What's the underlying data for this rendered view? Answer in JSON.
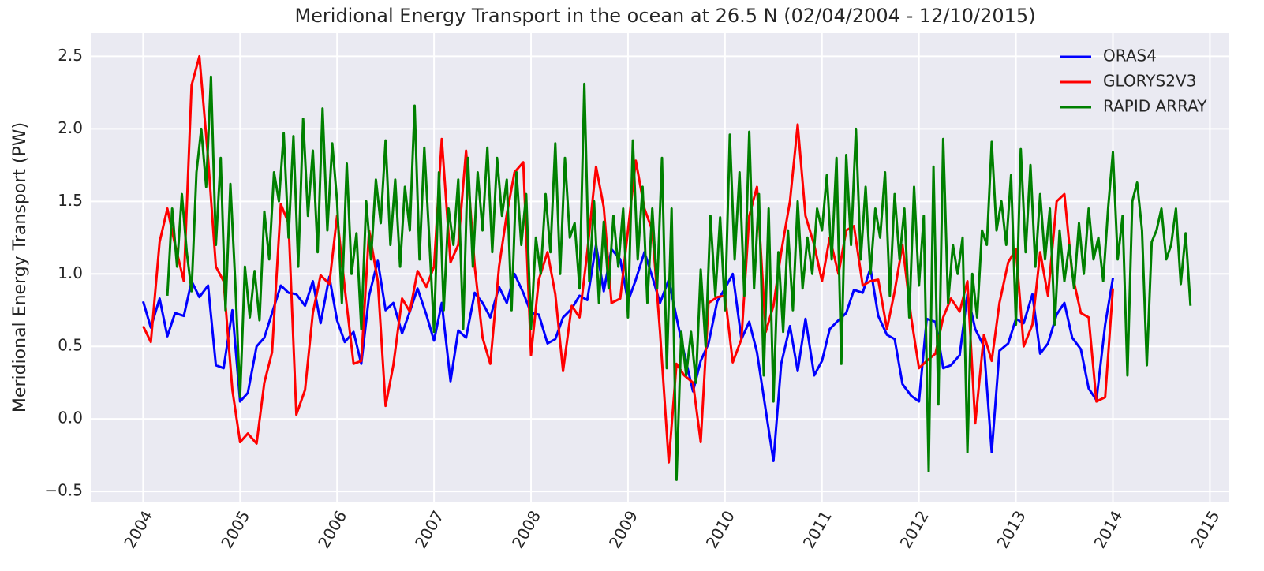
{
  "chart_data": {
    "type": "line",
    "title": "Meridional Energy Transport in the ocean at 26.5 N (02/04/2004 - 12/10/2015)",
    "ylabel": "Meridional Energy Transport (PW)",
    "x": [
      2004.0,
      2004.08,
      2004.17,
      2004.25,
      2004.33,
      2004.42,
      2004.5,
      2004.58,
      2004.67,
      2004.75,
      2004.83,
      2004.92,
      2005.0,
      2005.08,
      2005.17,
      2005.25,
      2005.33,
      2005.42,
      2005.5,
      2005.58,
      2005.67,
      2005.75,
      2005.83,
      2005.92,
      2006.0,
      2006.08,
      2006.17,
      2006.25,
      2006.33,
      2006.42,
      2006.5,
      2006.58,
      2006.67,
      2006.75,
      2006.83,
      2006.92,
      2007.0,
      2007.08,
      2007.17,
      2007.25,
      2007.33,
      2007.42,
      2007.5,
      2007.58,
      2007.67,
      2007.75,
      2007.83,
      2007.92,
      2008.0,
      2008.08,
      2008.17,
      2008.25,
      2008.33,
      2008.42,
      2008.5,
      2008.58,
      2008.67,
      2008.75,
      2008.83,
      2008.92,
      2009.0,
      2009.08,
      2009.17,
      2009.25,
      2009.33,
      2009.42,
      2009.5,
      2009.58,
      2009.67,
      2009.75,
      2009.83,
      2009.92,
      2010.0,
      2010.08,
      2010.17,
      2010.25,
      2010.33,
      2010.42,
      2010.5,
      2010.58,
      2010.67,
      2010.75,
      2010.83,
      2010.92,
      2011.0,
      2011.08,
      2011.17,
      2011.25,
      2011.33,
      2011.42,
      2011.5,
      2011.58,
      2011.67,
      2011.75,
      2011.83,
      2011.92,
      2012.0,
      2012.08,
      2012.17,
      2012.25,
      2012.33,
      2012.42,
      2012.5,
      2012.58,
      2012.67,
      2012.75,
      2012.83,
      2012.92,
      2013.0,
      2013.08,
      2013.17,
      2013.25,
      2013.33,
      2013.42,
      2013.5,
      2013.58,
      2013.67,
      2013.75,
      2013.83,
      2013.92,
      2014.0
    ],
    "series": [
      {
        "name": "ORAS4",
        "color": "#0000ff",
        "values": [
          0.81,
          0.63,
          0.83,
          0.57,
          0.73,
          0.71,
          0.95,
          0.84,
          0.92,
          0.37,
          0.35,
          0.75,
          0.12,
          0.18,
          0.5,
          0.56,
          0.73,
          0.92,
          0.87,
          0.86,
          0.78,
          0.95,
          0.66,
          0.98,
          0.68,
          0.53,
          0.6,
          0.38,
          0.85,
          1.09,
          0.75,
          0.8,
          0.59,
          0.74,
          0.9,
          0.72,
          0.54,
          0.8,
          0.26,
          0.61,
          0.56,
          0.87,
          0.8,
          0.7,
          0.91,
          0.8,
          1.0,
          0.87,
          0.73,
          0.72,
          0.52,
          0.55,
          0.7,
          0.76,
          0.85,
          0.82,
          1.2,
          0.88,
          1.17,
          1.1,
          0.81,
          0.96,
          1.15,
          0.98,
          0.8,
          0.96,
          0.7,
          0.45,
          0.19,
          0.4,
          0.52,
          0.81,
          0.9,
          1.0,
          0.55,
          0.67,
          0.46,
          0.06,
          -0.29,
          0.38,
          0.64,
          0.33,
          0.69,
          0.3,
          0.4,
          0.62,
          0.68,
          0.73,
          0.89,
          0.87,
          1.04,
          0.71,
          0.58,
          0.55,
          0.24,
          0.16,
          0.12,
          0.69,
          0.67,
          0.35,
          0.37,
          0.44,
          0.86,
          0.62,
          0.5,
          -0.23,
          0.47,
          0.52,
          0.69,
          0.66,
          0.86,
          0.45,
          0.52,
          0.72,
          0.8,
          0.56,
          0.48,
          0.21,
          0.13,
          0.65,
          0.97
        ]
      },
      {
        "name": "GLORYS2V3",
        "color": "#ff0000",
        "values": [
          0.64,
          0.53,
          1.22,
          1.45,
          1.2,
          0.95,
          2.3,
          2.5,
          1.8,
          1.05,
          0.95,
          0.2,
          -0.16,
          -0.1,
          -0.17,
          0.25,
          0.46,
          1.48,
          1.35,
          0.03,
          0.2,
          0.73,
          0.99,
          0.93,
          1.4,
          0.9,
          0.38,
          0.4,
          1.3,
          0.95,
          0.09,
          0.37,
          0.83,
          0.74,
          1.02,
          0.91,
          1.05,
          1.93,
          1.08,
          1.2,
          1.85,
          1.05,
          0.56,
          0.38,
          1.05,
          1.41,
          1.7,
          1.77,
          0.44,
          0.96,
          1.15,
          0.86,
          0.33,
          0.78,
          0.7,
          1.15,
          1.74,
          1.46,
          0.8,
          0.83,
          1.3,
          1.78,
          1.45,
          1.3,
          0.6,
          -0.3,
          0.38,
          0.3,
          0.25,
          -0.16,
          0.8,
          0.84,
          0.85,
          0.39,
          0.55,
          1.4,
          1.6,
          0.6,
          0.78,
          1.15,
          1.5,
          2.03,
          1.4,
          1.2,
          0.95,
          1.25,
          1.0,
          1.3,
          1.33,
          0.92,
          0.95,
          0.96,
          0.62,
          0.88,
          1.2,
          0.7,
          0.35,
          0.4,
          0.45,
          0.7,
          0.83,
          0.74,
          0.95,
          -0.03,
          0.58,
          0.4,
          0.8,
          1.08,
          1.17,
          0.5,
          0.65,
          1.15,
          0.85,
          1.5,
          1.55,
          1.0,
          0.73,
          0.7,
          0.12,
          0.15,
          0.9
        ]
      },
      {
        "name": "RAPID ARRAY",
        "color": "#008000",
        "x": [
          2004.25,
          2004.3,
          2004.35,
          2004.4,
          2004.45,
          2004.5,
          2004.55,
          2004.6,
          2004.65,
          2004.7,
          2004.75,
          2004.8,
          2004.85,
          2004.9,
          2004.95,
          2005.0,
          2005.05,
          2005.1,
          2005.15,
          2005.2,
          2005.25,
          2005.3,
          2005.35,
          2005.4,
          2005.45,
          2005.5,
          2005.55,
          2005.6,
          2005.65,
          2005.7,
          2005.75,
          2005.8,
          2005.85,
          2005.9,
          2005.95,
          2006.0,
          2006.05,
          2006.1,
          2006.15,
          2006.2,
          2006.25,
          2006.3,
          2006.35,
          2006.4,
          2006.45,
          2006.5,
          2006.55,
          2006.6,
          2006.65,
          2006.7,
          2006.75,
          2006.8,
          2006.85,
          2006.9,
          2006.95,
          2007.0,
          2007.05,
          2007.1,
          2007.15,
          2007.2,
          2007.25,
          2007.3,
          2007.35,
          2007.4,
          2007.45,
          2007.5,
          2007.55,
          2007.6,
          2007.65,
          2007.7,
          2007.75,
          2007.8,
          2007.85,
          2007.9,
          2007.95,
          2008.0,
          2008.05,
          2008.1,
          2008.15,
          2008.2,
          2008.25,
          2008.3,
          2008.35,
          2008.4,
          2008.45,
          2008.5,
          2008.55,
          2008.6,
          2008.65,
          2008.7,
          2008.75,
          2008.8,
          2008.85,
          2008.9,
          2008.95,
          2009.0,
          2009.05,
          2009.1,
          2009.15,
          2009.2,
          2009.25,
          2009.3,
          2009.35,
          2009.4,
          2009.45,
          2009.5,
          2009.55,
          2009.6,
          2009.65,
          2009.7,
          2009.75,
          2009.8,
          2009.85,
          2009.9,
          2009.95,
          2010.0,
          2010.05,
          2010.1,
          2010.15,
          2010.2,
          2010.25,
          2010.3,
          2010.35,
          2010.4,
          2010.45,
          2010.5,
          2010.55,
          2010.6,
          2010.65,
          2010.7,
          2010.75,
          2010.8,
          2010.85,
          2010.9,
          2010.95,
          2011.0,
          2011.05,
          2011.1,
          2011.15,
          2011.2,
          2011.25,
          2011.3,
          2011.35,
          2011.4,
          2011.45,
          2011.5,
          2011.55,
          2011.6,
          2011.65,
          2011.7,
          2011.75,
          2011.8,
          2011.85,
          2011.9,
          2011.95,
          2012.0,
          2012.05,
          2012.1,
          2012.15,
          2012.2,
          2012.25,
          2012.3,
          2012.35,
          2012.4,
          2012.45,
          2012.5,
          2012.55,
          2012.6,
          2012.65,
          2012.7,
          2012.75,
          2012.8,
          2012.85,
          2012.9,
          2012.95,
          2013.0,
          2013.05,
          2013.1,
          2013.15,
          2013.2,
          2013.25,
          2013.3,
          2013.35,
          2013.4,
          2013.45,
          2013.5,
          2013.55,
          2013.6,
          2013.65,
          2013.7,
          2013.75,
          2013.8,
          2013.85,
          2013.9,
          2013.95,
          2014.0,
          2014.05,
          2014.1,
          2014.15,
          2014.2,
          2014.25,
          2014.3,
          2014.35,
          2014.4,
          2014.45,
          2014.5,
          2014.55,
          2014.6,
          2014.65,
          2014.7,
          2014.75,
          2014.8
        ],
        "values": [
          0.85,
          1.45,
          1.05,
          1.55,
          1.15,
          0.88,
          1.7,
          2.0,
          1.6,
          2.36,
          1.2,
          1.8,
          0.75,
          1.62,
          0.95,
          0.15,
          1.05,
          0.7,
          1.02,
          0.68,
          1.43,
          1.1,
          1.7,
          1.5,
          1.97,
          1.25,
          1.95,
          1.05,
          2.07,
          1.4,
          1.85,
          1.15,
          2.14,
          1.3,
          1.9,
          1.5,
          0.8,
          1.76,
          1.0,
          1.28,
          0.62,
          1.5,
          1.1,
          1.65,
          1.35,
          1.92,
          1.2,
          1.65,
          1.05,
          1.6,
          1.3,
          2.16,
          1.1,
          1.87,
          1.25,
          0.6,
          1.7,
          0.75,
          1.45,
          1.2,
          1.65,
          0.62,
          1.8,
          1.05,
          1.7,
          1.3,
          1.87,
          1.15,
          1.8,
          1.4,
          1.65,
          0.75,
          1.7,
          1.2,
          1.55,
          0.62,
          1.25,
          1.0,
          1.55,
          1.15,
          1.9,
          1.0,
          1.8,
          1.25,
          1.35,
          0.9,
          2.31,
          0.95,
          1.5,
          0.8,
          1.36,
          0.9,
          1.4,
          1.05,
          1.45,
          0.7,
          1.92,
          1.1,
          1.6,
          0.8,
          1.45,
          0.9,
          1.8,
          0.35,
          1.45,
          -0.42,
          0.6,
          0.3,
          0.6,
          0.25,
          1.03,
          0.5,
          1.4,
          0.85,
          1.39,
          0.75,
          1.96,
          1.1,
          1.7,
          0.85,
          1.98,
          0.9,
          1.55,
          0.3,
          1.45,
          0.12,
          1.15,
          0.6,
          1.3,
          0.75,
          1.5,
          0.9,
          1.25,
          1.0,
          1.45,
          1.3,
          1.68,
          1.1,
          1.8,
          0.38,
          1.82,
          1.2,
          2.0,
          1.1,
          1.6,
          1.0,
          1.45,
          1.25,
          1.7,
          0.85,
          1.55,
          1.1,
          1.45,
          0.7,
          1.6,
          0.92,
          1.4,
          -0.36,
          1.74,
          0.1,
          1.93,
          0.8,
          1.2,
          1.0,
          1.25,
          -0.23,
          1.0,
          0.7,
          1.3,
          1.2,
          1.91,
          1.3,
          1.5,
          1.2,
          1.68,
          0.65,
          1.86,
          1.15,
          1.75,
          1.05,
          1.55,
          1.1,
          1.45,
          0.65,
          1.3,
          0.95,
          1.2,
          0.9,
          1.35,
          1.0,
          1.45,
          1.1,
          1.25,
          0.95,
          1.45,
          1.84,
          1.1,
          1.4,
          0.3,
          1.5,
          1.63,
          1.3,
          0.37,
          1.22,
          1.3,
          1.45,
          1.1,
          1.2,
          1.45,
          0.93,
          1.28,
          0.78
        ]
      }
    ],
    "xlim": [
      2003.46,
      2015.2
    ],
    "ylim": [
      -0.57,
      2.66
    ],
    "xticks": [
      2004,
      2005,
      2006,
      2007,
      2008,
      2009,
      2010,
      2011,
      2012,
      2013,
      2014,
      2015
    ],
    "yticks": [
      {
        "value": -0.5,
        "label": "−0.5"
      },
      {
        "value": 0,
        "label": "0.0"
      },
      0.5,
      {
        "value": 1,
        "label": "1.0"
      },
      1.5,
      {
        "value": 2,
        "label": "2.0"
      },
      2.5
    ],
    "grid": true,
    "legend": "upper right"
  }
}
